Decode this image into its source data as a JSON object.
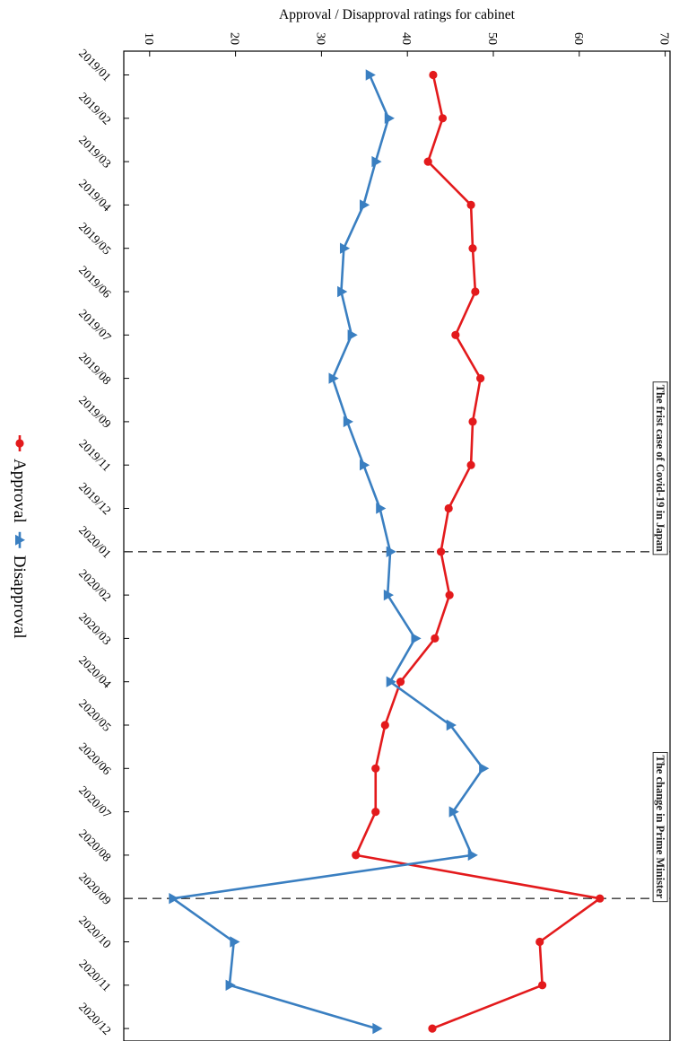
{
  "chart_data": {
    "type": "line",
    "title": "Approval / Disapproval ratings for cabinet",
    "xlabel": "",
    "ylabel": "",
    "categories": [
      "2019/01",
      "2019/02",
      "2019/03",
      "2019/04",
      "2019/05",
      "2019/06",
      "2019/07",
      "2019/08",
      "2019/09",
      "2019/11",
      "2019/12",
      "2020/01",
      "2020/02",
      "2020/03",
      "2020/04",
      "2020/05",
      "2020/06",
      "2020/07",
      "2020/08",
      "2020/09",
      "2020/10",
      "2020/11",
      "2020/12"
    ],
    "value_axis": {
      "min": 7,
      "max": 71,
      "ticks": [
        10,
        20,
        30,
        40,
        50,
        60,
        70
      ]
    },
    "series": [
      {
        "name": "Approval",
        "color": "#e31a1c",
        "marker": "circle",
        "values": [
          43.0,
          44.1,
          42.4,
          47.4,
          47.6,
          47.9,
          45.6,
          48.5,
          47.6,
          47.4,
          44.8,
          43.9,
          44.9,
          43.2,
          39.2,
          37.4,
          36.3,
          36.3,
          34.0,
          62.4,
          55.4,
          55.7,
          42.9
        ]
      },
      {
        "name": "Disapproval",
        "color": "#3a7fc1",
        "marker": "triangle",
        "values": [
          35.6,
          37.8,
          36.3,
          34.9,
          32.6,
          32.3,
          33.5,
          31.3,
          33.0,
          34.9,
          36.8,
          38.0,
          37.7,
          40.9,
          38.0,
          45.0,
          48.8,
          45.3,
          47.5,
          12.7,
          19.8,
          19.3,
          36.4
        ]
      }
    ],
    "annotations": [
      {
        "category": "2020/01",
        "text": "The frist case of Covid-19 in Japan"
      },
      {
        "category": "2020/09",
        "text": "The change in Prime Minister"
      }
    ],
    "legend": [
      "Approval",
      "Disapproval"
    ],
    "legend_position": "bottom",
    "orientation": "rotated-90-clockwise",
    "grid": false
  }
}
